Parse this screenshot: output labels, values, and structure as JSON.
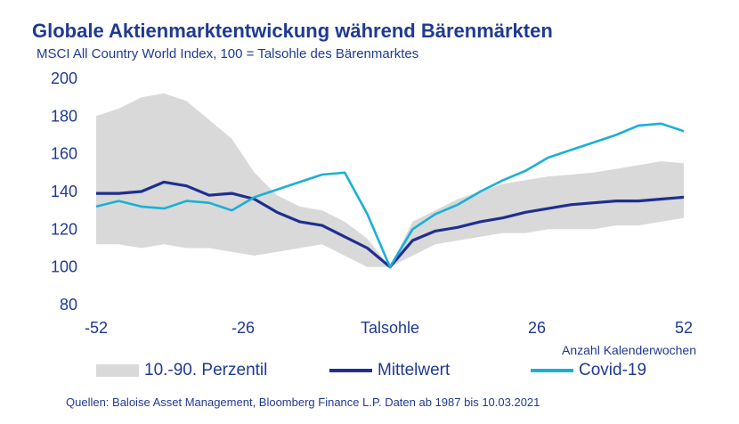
{
  "title": "Globale Aktienmarktentwickung  während Bärenmärkten",
  "subtitle": "MSCI All Country World Index, 100 = Talsohle des Bärenmarktes",
  "source": "Quellen:  Baloise Asset Management,  Bloomberg Finance L.P. Daten ab 1987 bis 10.03.2021",
  "colors": {
    "band": "#d9d9d9",
    "mean": "#1f2f8f",
    "covid": "#1ab0d6",
    "text": "#1f3a93"
  },
  "legend": [
    {
      "label": "10.-90. Perzentil",
      "kind": "band"
    },
    {
      "label": "Mittelwert",
      "kind": "mean"
    },
    {
      "label": "Covid-19",
      "kind": "covid"
    }
  ],
  "chart_data": {
    "type": "line",
    "title": "Globale Aktienmarktentwickung  während Bärenmärkten",
    "subtitle": "MSCI All Country World Index, 100 = Talsohle des Bärenmarktes",
    "xlabel": "Anzahl Kalenderwochen",
    "ylabel": "",
    "xlim": [
      -52,
      52
    ],
    "ylim": [
      80,
      200
    ],
    "x_ticks": [
      {
        "value": -52,
        "label": "-52"
      },
      {
        "value": -26,
        "label": "-26"
      },
      {
        "value": 0,
        "label": "Talsohle"
      },
      {
        "value": 26,
        "label": "26"
      },
      {
        "value": 52,
        "label": "52"
      }
    ],
    "y_ticks": [
      80,
      100,
      120,
      140,
      160,
      180,
      200
    ],
    "grid": false,
    "legend_position": "bottom",
    "x": [
      -52,
      -48,
      -44,
      -40,
      -36,
      -32,
      -28,
      -24,
      -20,
      -16,
      -12,
      -8,
      -4,
      0,
      4,
      8,
      12,
      16,
      20,
      24,
      28,
      32,
      36,
      40,
      44,
      48,
      52
    ],
    "band": {
      "name": "10.-90. Perzentil",
      "upper": [
        180,
        184,
        190,
        192,
        188,
        178,
        168,
        150,
        138,
        132,
        130,
        124,
        115,
        100,
        124,
        130,
        136,
        140,
        144,
        146,
        148,
        149,
        150,
        152,
        154,
        156,
        155
      ],
      "lower": [
        112,
        112,
        110,
        112,
        110,
        110,
        108,
        106,
        108,
        110,
        112,
        106,
        100,
        100,
        106,
        112,
        114,
        116,
        118,
        118,
        120,
        120,
        120,
        122,
        122,
        124,
        126
      ]
    },
    "series": [
      {
        "name": "Mittelwert",
        "values": [
          139,
          139,
          140,
          145,
          143,
          138,
          139,
          136,
          129,
          124,
          122,
          116,
          110,
          100,
          114,
          119,
          121,
          124,
          126,
          129,
          131,
          133,
          134,
          135,
          135,
          136,
          137
        ]
      },
      {
        "name": "Covid-19",
        "values": [
          132,
          135,
          132,
          131,
          135,
          134,
          130,
          137,
          141,
          145,
          149,
          150,
          128,
          100,
          120,
          128,
          133,
          140,
          146,
          151,
          158,
          162,
          166,
          170,
          175,
          176,
          172
        ]
      }
    ]
  }
}
